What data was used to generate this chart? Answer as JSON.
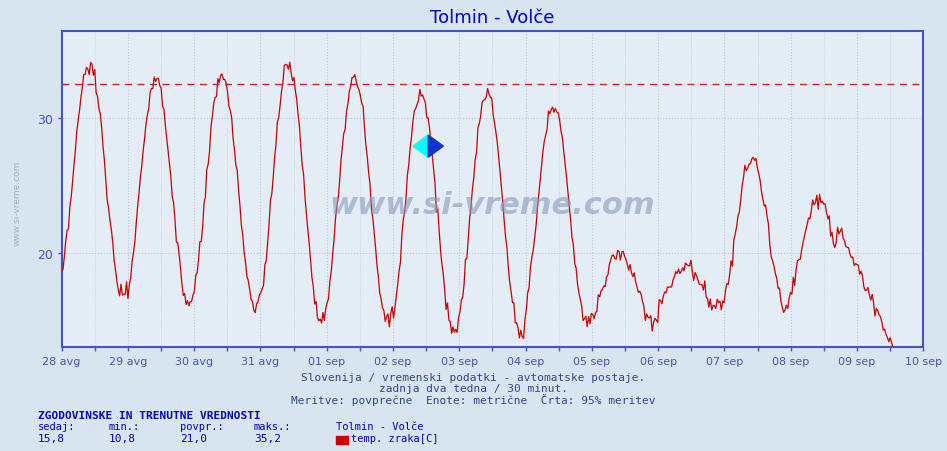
{
  "title": "Tolmin - Volče",
  "title_color": "#0000cc",
  "bg_color": "#d8e4f0",
  "plot_bg_color": "#e4ecf5",
  "line_color": "#cc0000",
  "dashed_line_color": "#cc0000",
  "dashed_line_y": 32.5,
  "grid_color": "#b8c8dc",
  "axis_color": "#4455bb",
  "ylabel_values": [
    20,
    30
  ],
  "ymin": 13,
  "ymax": 36.5,
  "x_tick_labels": [
    "28 avg",
    "29 avg",
    "30 avg",
    "31 avg",
    "01 sep",
    "02 sep",
    "03 sep",
    "04 sep",
    "05 sep",
    "06 sep",
    "07 sep",
    "08 sep",
    "09 sep",
    "10 sep"
  ],
  "footer_line1": "Slovenija / vremenski podatki - avtomatske postaje.",
  "footer_line2": "zadnja dva tedna / 30 minut.",
  "footer_line3": "Meritve: povprečne  Enote: metrične  Črta: 95% meritev",
  "footer_color": "#334499",
  "stats_label": "ZGODOVINSKE IN TRENUTNE VREDNOSTI",
  "stats_color": "#0000cc",
  "stats_headers": [
    "sedaj:",
    "min.:",
    "povpr.:",
    "maks.:"
  ],
  "stats_values": [
    "15,8",
    "10,8",
    "21,0",
    "35,2"
  ],
  "legend_station": "Tolmin - Volče",
  "legend_item": "temp. zraka[C]",
  "legend_color": "#cc0000",
  "watermark": "www.si-vreme.com",
  "watermark_color": "#8899bb",
  "n_days": 13,
  "n_per_day": 48
}
